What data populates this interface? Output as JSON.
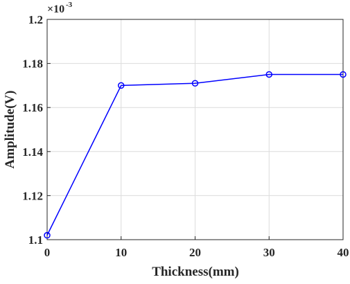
{
  "chart_data": {
    "type": "line",
    "x_label": "Thickness(mm)",
    "y_label": "Amplitude(V)",
    "y_multiplier": {
      "base": "×10",
      "exponent": "-3"
    },
    "x": [
      0,
      10,
      20,
      30,
      40
    ],
    "series": [
      {
        "name": "Amplitude",
        "color": "#0000ff",
        "values": [
          1.102,
          1.17,
          1.171,
          1.175,
          1.175
        ]
      }
    ],
    "xlim": [
      0,
      40
    ],
    "xticks": [
      0,
      10,
      20,
      30,
      40
    ],
    "ylim": [
      1.1,
      1.2
    ],
    "yticks": [
      1.1,
      1.12,
      1.14,
      1.16,
      1.18,
      1.2
    ],
    "grid": true,
    "marker": "circle"
  }
}
